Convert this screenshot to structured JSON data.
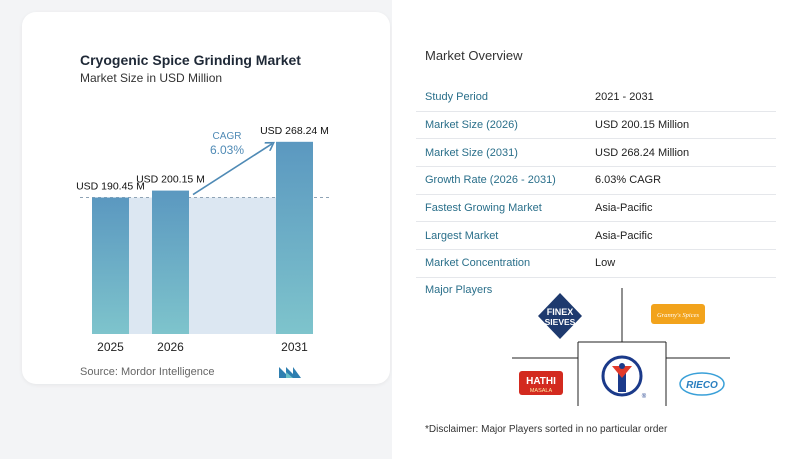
{
  "chart_data": {
    "type": "bar",
    "title": "Cryogenic Spice Grinding Market",
    "subtitle": "Market Size in USD Million",
    "categories": [
      "2025",
      "2026",
      "2031"
    ],
    "values": [
      190.45,
      200.15,
      268.24
    ],
    "value_labels": [
      "USD 190.45 M",
      "USD 200.15 M",
      "USD 268.24 M"
    ],
    "annotation": {
      "label": "CAGR",
      "value": "6.03%"
    },
    "colors": {
      "bar_top": "#5b98c0",
      "bar_bottom": "#7ec4cc",
      "band": "#dce7f2",
      "arrow": "#4f8ab5"
    },
    "source": "Source:  Mordor Intelligence"
  },
  "overview": {
    "title": "Market Overview",
    "rows": [
      {
        "key": "Study Period",
        "value": "2021 - 2031"
      },
      {
        "key": "Market Size (2026)",
        "value": "USD 200.15 Million"
      },
      {
        "key": "Market Size (2031)",
        "value": "USD 268.24 Million"
      },
      {
        "key": "Growth Rate (2026 - 2031)",
        "value": "6.03% CAGR"
      },
      {
        "key": "Fastest Growing Market",
        "value": "Asia-Pacific"
      },
      {
        "key": "Largest Market",
        "value": "Asia-Pacific"
      },
      {
        "key": "Market Concentration",
        "value": "Low"
      }
    ]
  },
  "players": {
    "title": "Major Players",
    "logos": {
      "finex_line1": "FINEX",
      "finex_line2": "SIEVES",
      "grannys": "Granny's Spices",
      "hathi": "HATHI",
      "hathi_sub": "MASALA",
      "rieco": "RIECO"
    }
  },
  "disclaimer": "*Disclaimer: Major Players sorted in no particular order"
}
